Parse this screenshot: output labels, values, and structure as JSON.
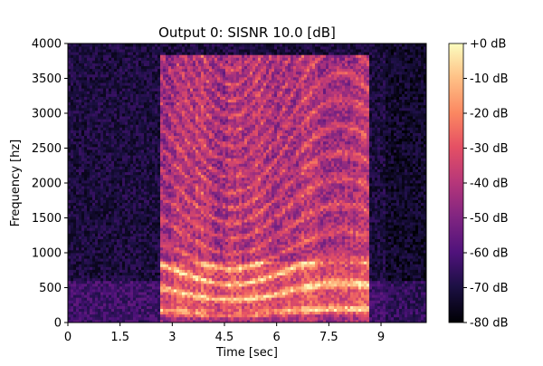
{
  "chart_data": {
    "type": "heatmap",
    "title": "Output 0: SISNR 10.0 [dB]",
    "xlabel": "Time [sec]",
    "ylabel": "Frequency [hz]",
    "xlim": [
      0,
      10.3
    ],
    "ylim": [
      0,
      4000
    ],
    "x_ticks": [
      {
        "value": 0,
        "label": "0"
      },
      {
        "value": 1.5,
        "label": "1.5"
      },
      {
        "value": 3,
        "label": "3"
      },
      {
        "value": 4.5,
        "label": "4.5"
      },
      {
        "value": 6,
        "label": "6"
      },
      {
        "value": 7.5,
        "label": "7.5"
      },
      {
        "value": 9,
        "label": "9"
      }
    ],
    "y_ticks": [
      {
        "value": 0,
        "label": "0"
      },
      {
        "value": 500,
        "label": "500"
      },
      {
        "value": 1000,
        "label": "1000"
      },
      {
        "value": 1500,
        "label": "1500"
      },
      {
        "value": 2000,
        "label": "2000"
      },
      {
        "value": 2500,
        "label": "2500"
      },
      {
        "value": 3000,
        "label": "3000"
      },
      {
        "value": 3500,
        "label": "3500"
      },
      {
        "value": 4000,
        "label": "4000"
      }
    ],
    "colorbar": {
      "range": [
        -80,
        0
      ],
      "colormap": "magma",
      "ticks": [
        {
          "value": 0,
          "label": "+0 dB"
        },
        {
          "value": -10,
          "label": "-10 dB"
        },
        {
          "value": -20,
          "label": "-20 dB"
        },
        {
          "value": -30,
          "label": "-30 dB"
        },
        {
          "value": -40,
          "label": "-40 dB"
        },
        {
          "value": -50,
          "label": "-50 dB"
        },
        {
          "value": -60,
          "label": "-60 dB"
        },
        {
          "value": -70,
          "label": "-70 dB"
        },
        {
          "value": -80,
          "label": "-80 dB"
        }
      ]
    },
    "speech_region": {
      "t_start": 2.65,
      "t_end": 8.65,
      "f_max": 3850
    },
    "grid": false
  }
}
